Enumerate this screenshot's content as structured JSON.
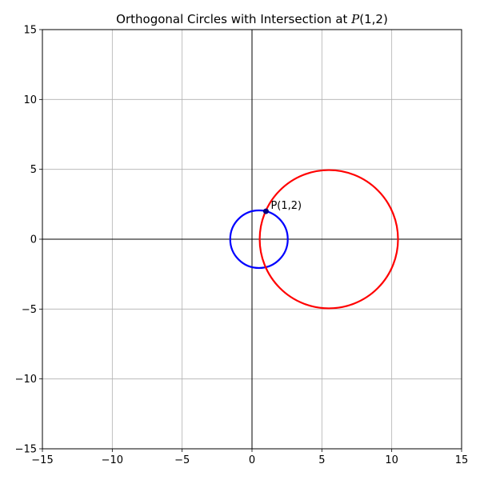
{
  "chart_data": {
    "type": "line",
    "title": "Orthogonal Circles with Intersection at P(1,2)",
    "xlim": [
      -15,
      15
    ],
    "ylim": [
      -15,
      15
    ],
    "xticks": [
      -15,
      -10,
      -5,
      0,
      5,
      10,
      15
    ],
    "yticks": [
      -15,
      -10,
      -5,
      0,
      5,
      10,
      15
    ],
    "xtick_labels": [
      "−15",
      "−10",
      "−5",
      "0",
      "5",
      "10",
      "15"
    ],
    "ytick_labels": [
      "−15",
      "−10",
      "−5",
      "0",
      "5",
      "10",
      "15"
    ],
    "grid": true,
    "axis_lines": {
      "x": 0,
      "y": 0
    },
    "series": [
      {
        "shape": "circle",
        "center": [
          0.5,
          0
        ],
        "radius": 2.06,
        "color": "#0000ff"
      },
      {
        "shape": "circle",
        "center": [
          5.5,
          0
        ],
        "radius": 4.95,
        "color": "#ff0000"
      }
    ],
    "points": [
      {
        "label": "P(1,2)",
        "x": 1,
        "y": 2,
        "color": "#000080"
      }
    ]
  }
}
